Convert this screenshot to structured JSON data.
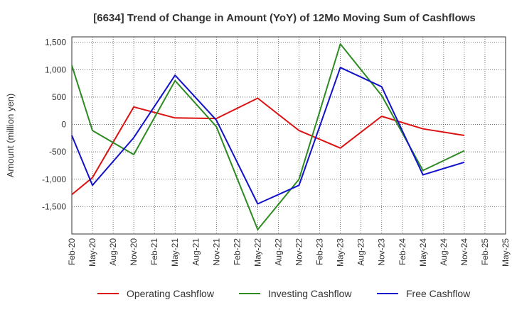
{
  "chart_data": {
    "type": "line",
    "title": "[6634]  Trend of Change in Amount (YoY) of 12Mo Moving Sum of Cashflows",
    "xlabel": "",
    "ylabel": "Amount (million yen)",
    "ylim": [
      -2000,
      1600
    ],
    "yticks": [
      1500,
      1000,
      500,
      0,
      -500,
      -1000,
      -1500
    ],
    "ytick_labels": [
      "1,500",
      "1,000",
      "500",
      "0",
      "-500",
      "-1,000",
      "-1,500"
    ],
    "grid": true,
    "legend_position": "bottom",
    "categories": [
      "Feb-20",
      "May-20",
      "Aug-20",
      "Nov-20",
      "Feb-21",
      "May-21",
      "Aug-21",
      "Nov-21",
      "Feb-22",
      "May-22",
      "Aug-22",
      "Nov-22",
      "Feb-23",
      "May-23",
      "Aug-23",
      "Nov-23",
      "Feb-24",
      "May-24",
      "Aug-24",
      "Nov-24",
      "Feb-25",
      "May-25"
    ],
    "series": [
      {
        "name": "Operating Cashflow",
        "color": "#dd1111",
        "values": [
          -1280,
          -970,
          null,
          320,
          null,
          120,
          null,
          110,
          null,
          480,
          null,
          -110,
          null,
          -430,
          null,
          150,
          null,
          -80,
          null,
          -200,
          null,
          null
        ]
      },
      {
        "name": "Investing Cashflow",
        "color": "#2e8b22",
        "values": [
          1080,
          -110,
          null,
          -550,
          null,
          800,
          null,
          -40,
          null,
          -1920,
          null,
          -1000,
          null,
          1470,
          null,
          530,
          null,
          -840,
          null,
          -480,
          null,
          null
        ]
      },
      {
        "name": "Free Cashflow",
        "color": "#1111cc",
        "values": [
          -200,
          -1110,
          null,
          -240,
          null,
          900,
          null,
          80,
          null,
          -1450,
          null,
          -1110,
          null,
          1040,
          null,
          690,
          null,
          -920,
          null,
          -690,
          null,
          null
        ]
      }
    ]
  }
}
